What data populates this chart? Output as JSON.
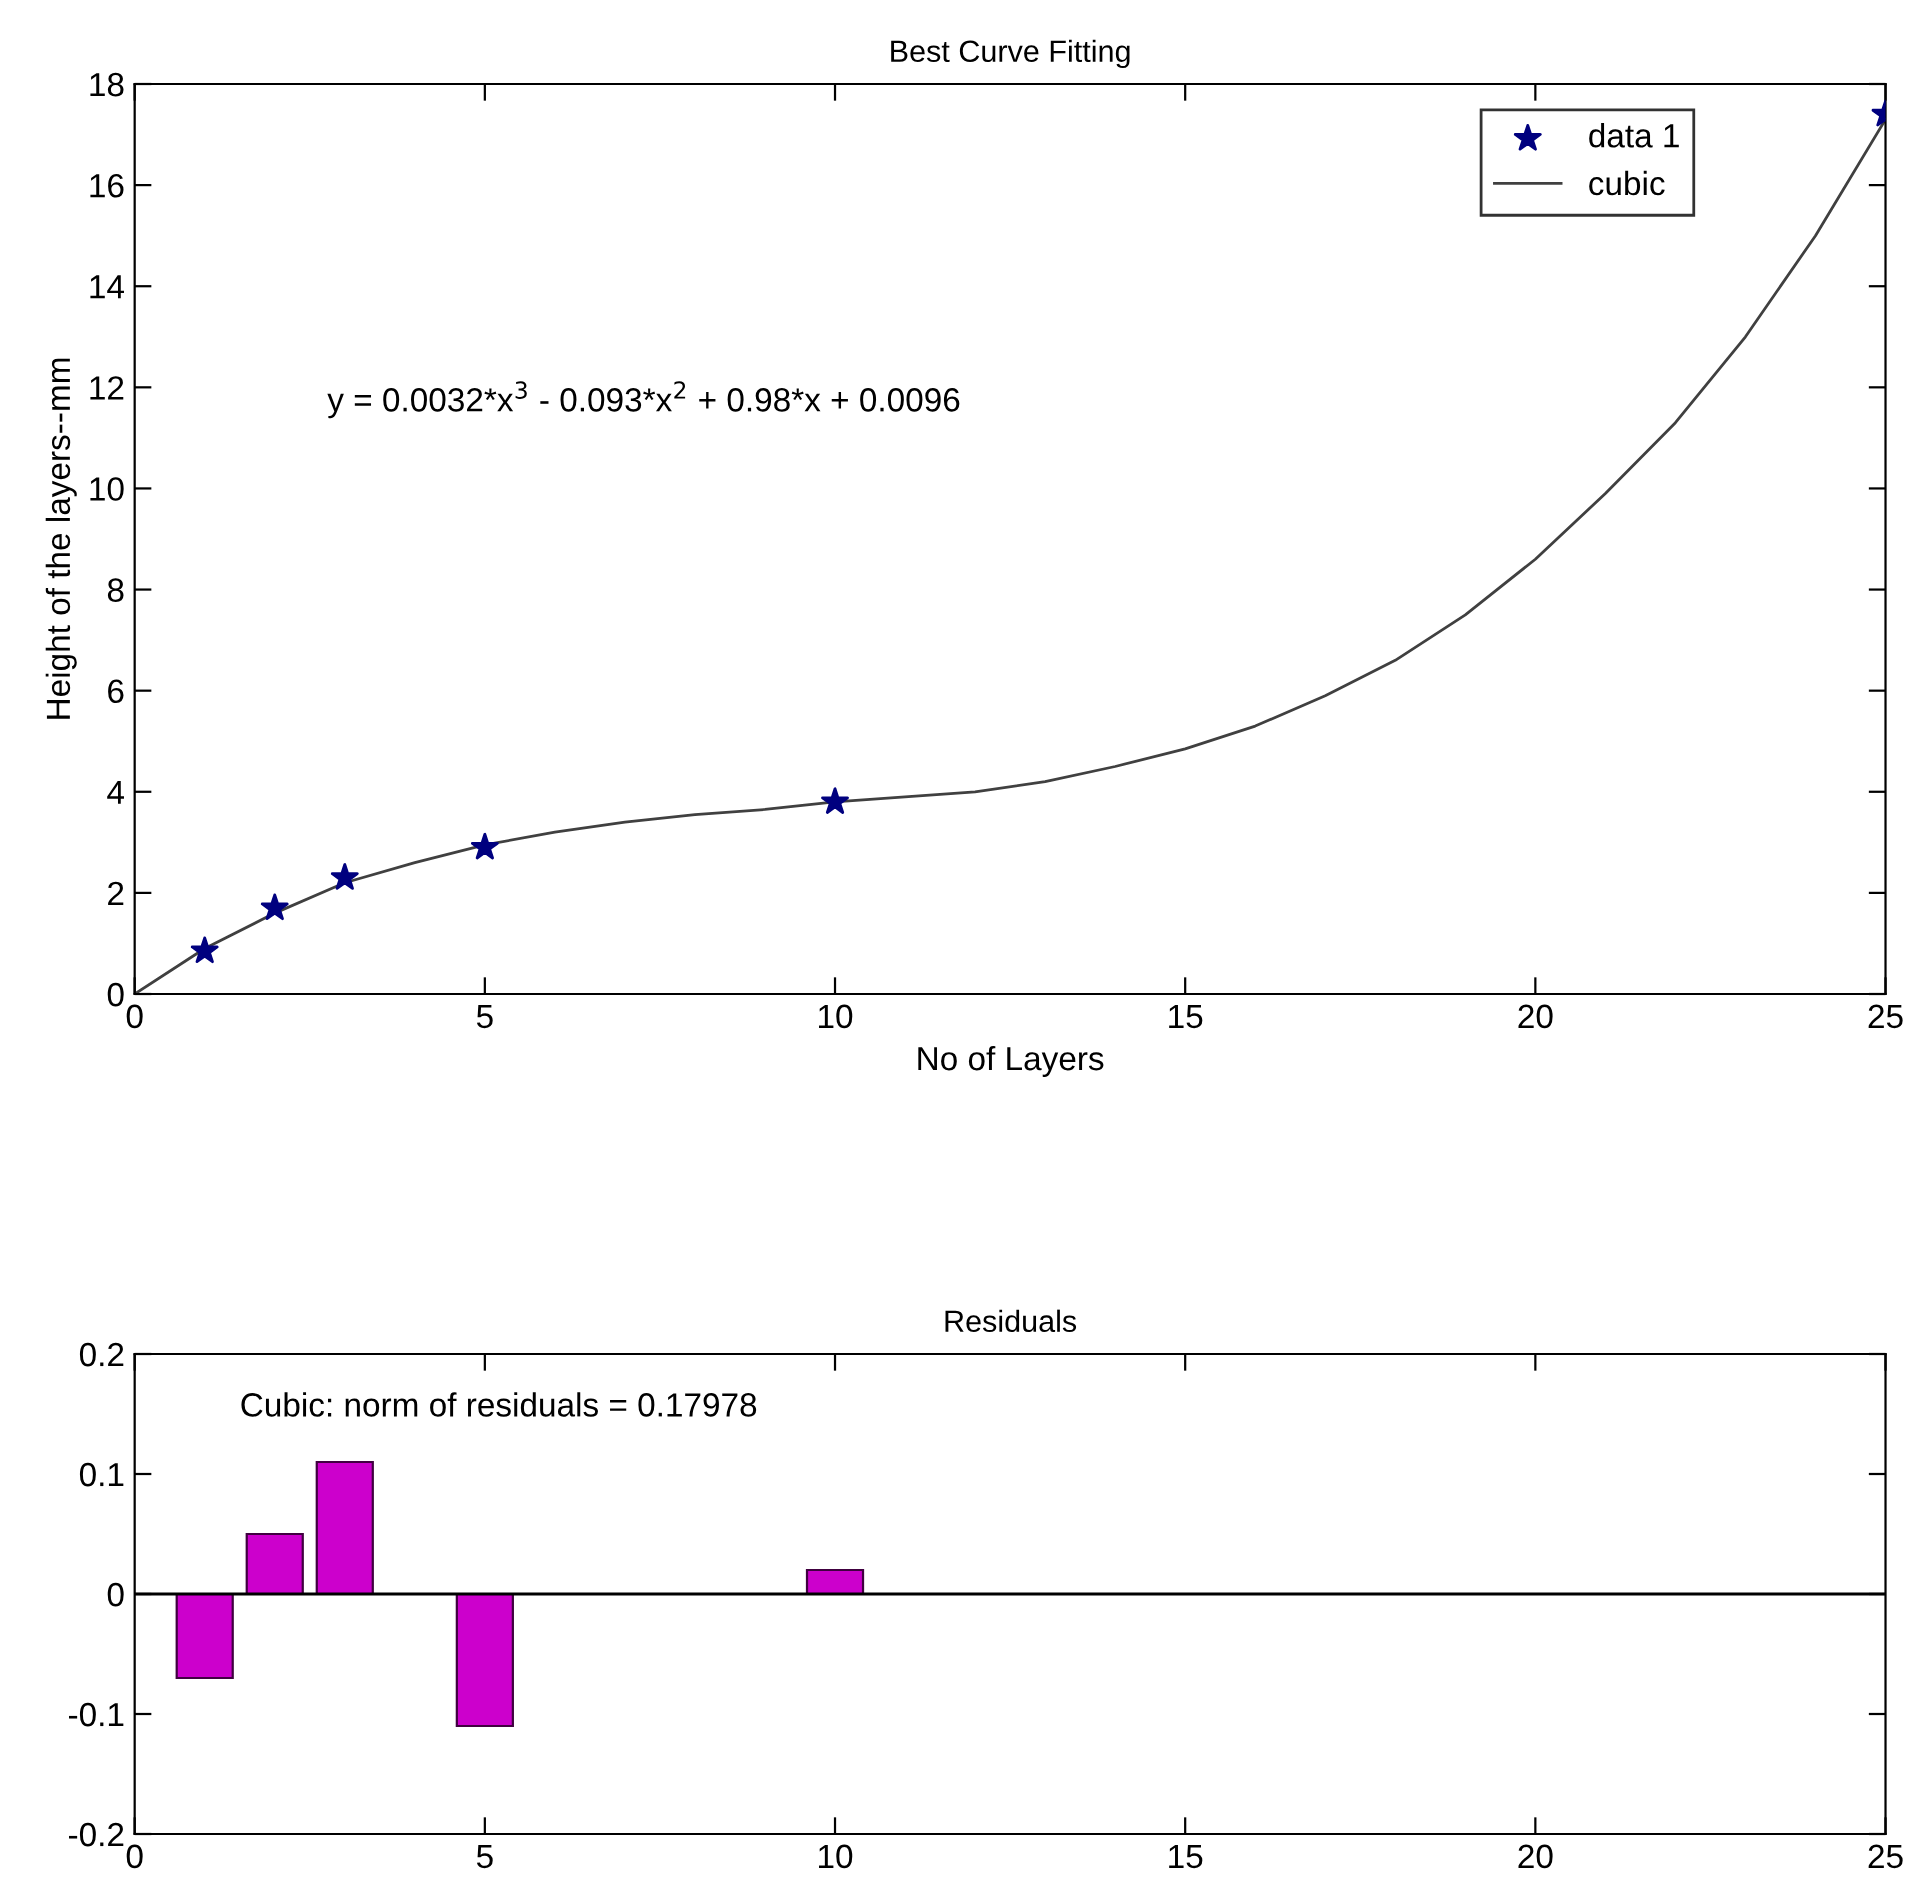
{
  "chart_data": [
    {
      "type": "scatter",
      "title": "Best Curve Fitting",
      "xlabel": "No of Layers",
      "ylabel": "Height of the layers--mm",
      "series": [
        {
          "name": "data 1",
          "type": "scatter",
          "color": "#00007f",
          "marker": "star",
          "x": [
            1,
            2,
            3,
            5,
            10,
            25
          ],
          "values": [
            0.85,
            1.7,
            2.3,
            2.9,
            3.8,
            17.4
          ]
        },
        {
          "name": "cubic",
          "type": "line",
          "color": "#404040",
          "marker": "none",
          "line_style": "solid",
          "x": [
            0,
            1,
            2,
            3,
            4,
            5,
            6,
            7,
            8,
            9,
            10,
            11,
            12,
            13,
            14,
            15,
            16,
            17,
            18,
            19,
            20,
            21,
            22,
            23,
            24,
            25
          ],
          "values": [
            0,
            0.9,
            1.6,
            2.2,
            2.6,
            2.95,
            3.2,
            3.4,
            3.55,
            3.65,
            3.8,
            3.9,
            4.0,
            4.2,
            4.5,
            4.85,
            5.3,
            5.9,
            6.6,
            7.5,
            8.6,
            9.9,
            11.3,
            13.0,
            15.0,
            17.3
          ]
        }
      ],
      "annotations": [
        "y = 0.0032*x$^{3}$ - 0.093*x$^{2}$ + 0.98*x + 0.0096"
      ],
      "xlim": [
        0,
        25
      ],
      "xticks": [
        0,
        5,
        10,
        15,
        20,
        25
      ],
      "ylim": [
        0,
        18
      ],
      "yticks": [
        0,
        2,
        4,
        6,
        8,
        10,
        12,
        14,
        16,
        18
      ],
      "grid": false,
      "legend": "top right"
    },
    {
      "type": "bar",
      "title": "Residuals",
      "x": [
        1,
        2,
        3,
        5,
        10
      ],
      "values": [
        -0.07,
        0.05,
        0.11,
        -0.11,
        0.02
      ],
      "color": "#cc00cc",
      "annotations": [
        "Cubic: norm of residuals = 0.17978"
      ],
      "ref_lines": [
        {
          "axis": "y",
          "value": 0,
          "label": null,
          "color": "#000000"
        }
      ],
      "xlim": [
        0,
        25
      ],
      "xticks": [
        0,
        5,
        10,
        15,
        20,
        25
      ],
      "ylim": [
        -0.2,
        0.2
      ],
      "yticks": [
        -0.2,
        -0.1,
        0,
        0.1,
        0.2
      ],
      "grid": false,
      "legend": false
    }
  ]
}
